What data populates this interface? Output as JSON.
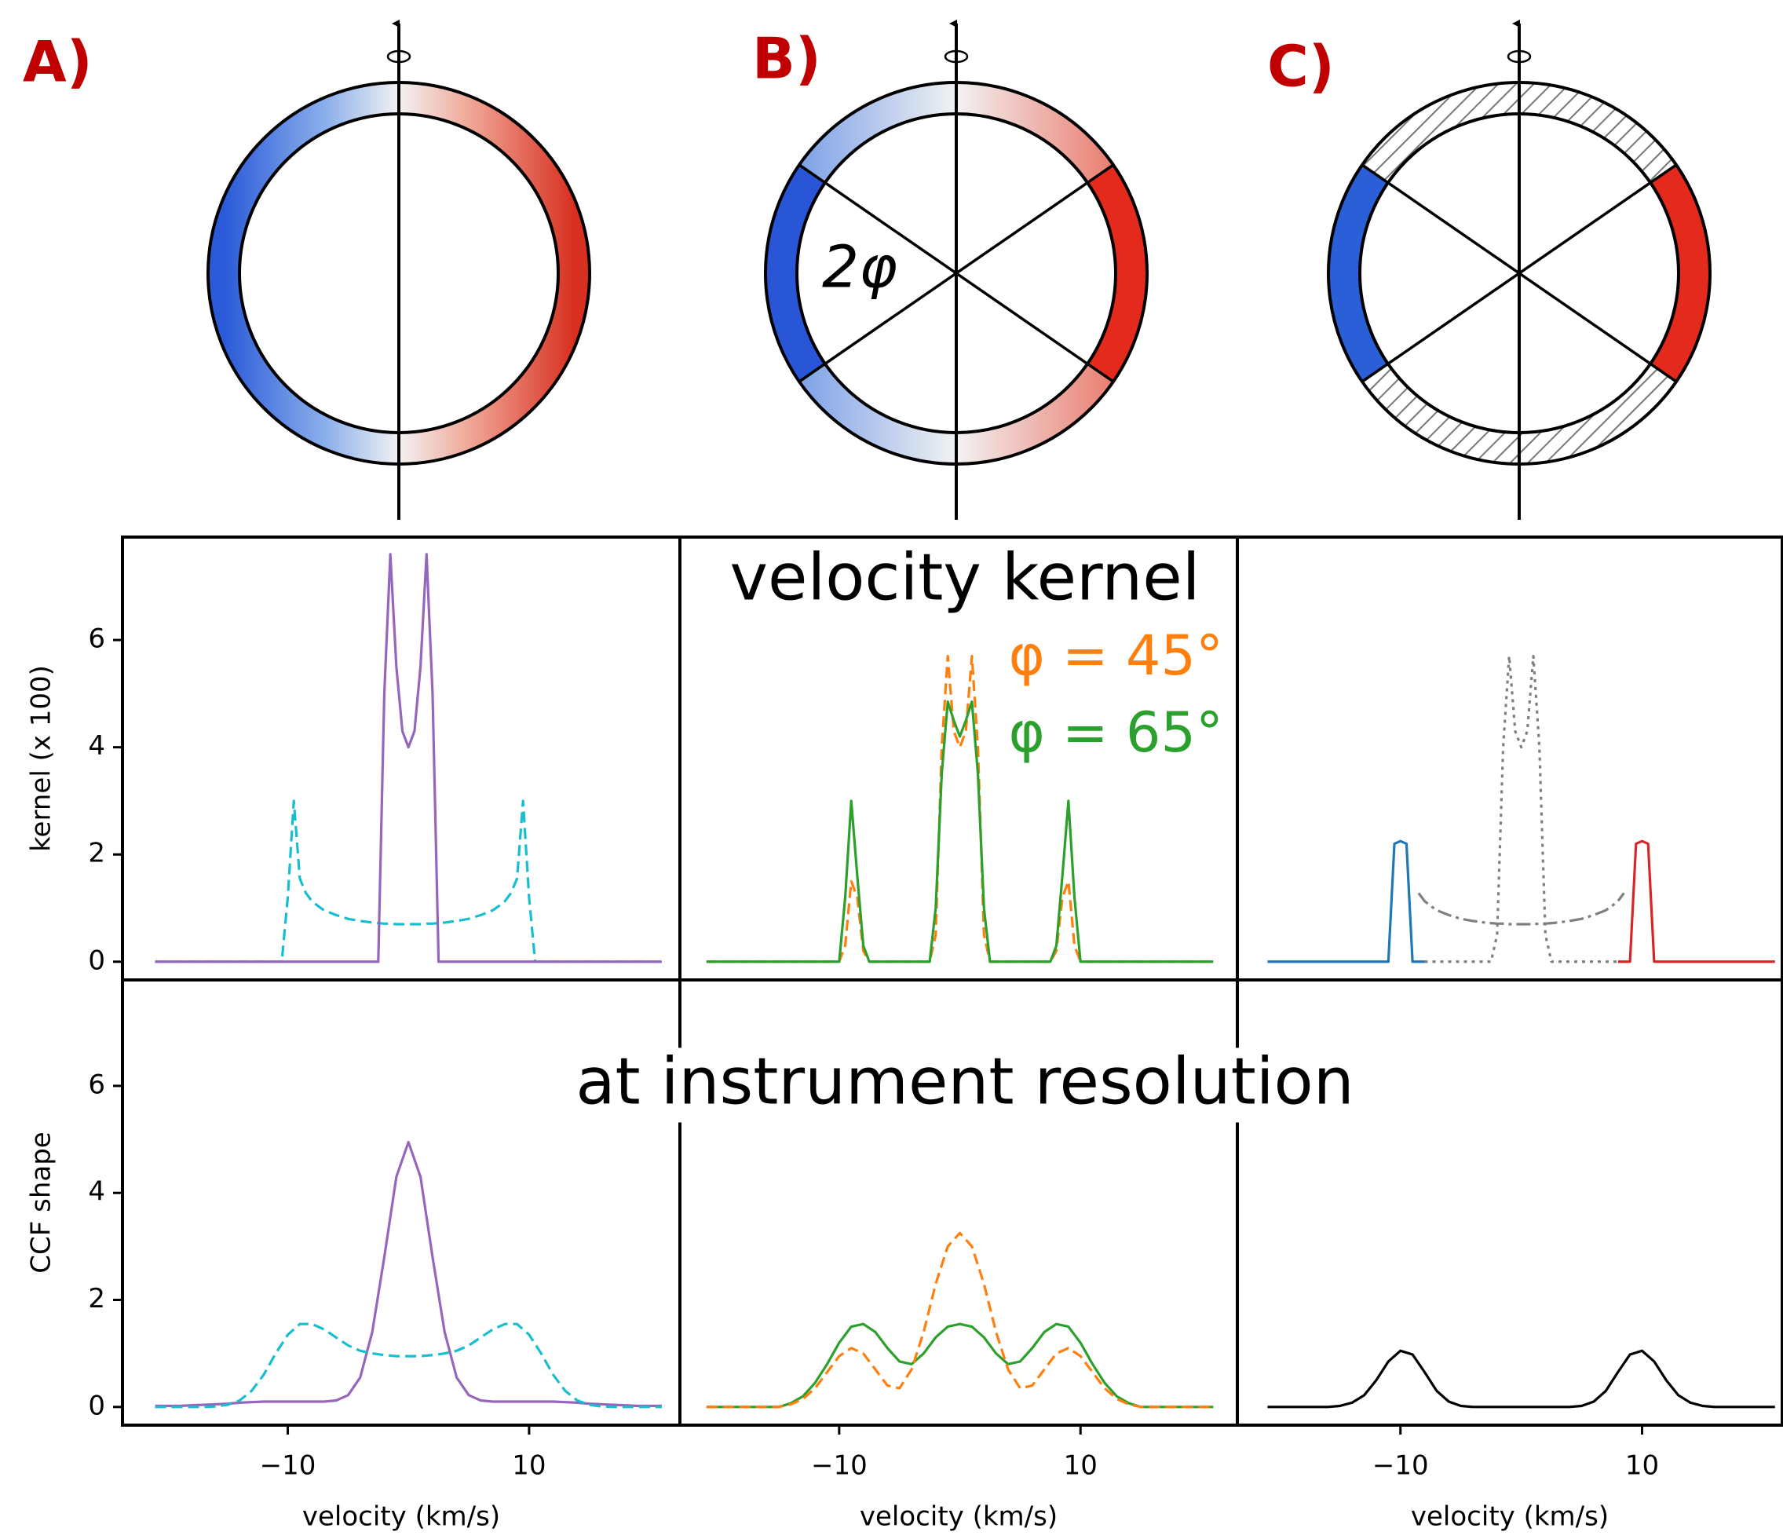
{
  "diagrams": {
    "labels": [
      "A)",
      "B)",
      "C)"
    ],
    "angle_label": "2φ"
  },
  "chart_data": [
    {
      "type": "line",
      "ylabel": "kernel (x 100)",
      "xlim": [
        -23.7,
        22.5
      ],
      "ylim": [
        -0.34,
        7.92
      ],
      "yticks": [
        0,
        2,
        4,
        6
      ],
      "x": [
        -21,
        -12,
        -11,
        -10.5,
        -10,
        -9.5,
        -9,
        -8.5,
        -8,
        -7.5,
        -7,
        -6,
        -5,
        -4,
        -3,
        -2.5,
        -2,
        -1.5,
        -1,
        -0.5,
        0,
        0.5,
        1,
        1.5,
        2,
        2.5,
        3,
        4,
        5,
        6,
        7,
        7.5,
        8,
        8.5,
        9,
        9.5,
        10,
        10.5,
        11,
        12,
        21
      ],
      "series": [
        {
          "color": "#17becf",
          "dash": "dashed",
          "values": [
            0,
            0,
            0,
            0,
            1.2,
            3,
            1.55,
            1.28,
            1.13,
            1.04,
            0.96,
            0.87,
            0.8,
            0.76,
            0.73,
            0.72,
            0.71,
            0.71,
            0.7,
            0.7,
            0.7,
            0.7,
            0.7,
            0.71,
            0.71,
            0.72,
            0.73,
            0.76,
            0.8,
            0.87,
            0.96,
            1.04,
            1.13,
            1.28,
            1.55,
            3,
            1.2,
            0,
            0,
            0,
            0
          ]
        },
        {
          "color": "#9467bd",
          "dash": "solid",
          "values": [
            0,
            0,
            0,
            0,
            0,
            0,
            0,
            0,
            0,
            0,
            0,
            0,
            0,
            0,
            0,
            0,
            5,
            7.6,
            5.5,
            4.3,
            4,
            4.3,
            5.5,
            7.6,
            5,
            0,
            0,
            0,
            0,
            0,
            0,
            0,
            0,
            0,
            0,
            0,
            0,
            0,
            0,
            0,
            0
          ]
        }
      ]
    },
    {
      "type": "line",
      "title": "velocity kernel",
      "legend": "upper right",
      "xlim": [
        -23.2,
        23.0
      ],
      "ylim": [
        -0.34,
        7.92
      ],
      "x": [
        -21,
        -12,
        -11,
        -10.5,
        -10,
        -9.5,
        -9,
        -8.5,
        -8,
        -7.5,
        -7,
        -6,
        -5,
        -4,
        -3,
        -2.5,
        -2,
        -1.5,
        -1,
        -0.5,
        0,
        0.5,
        1,
        1.5,
        2,
        2.5,
        3,
        4,
        5,
        6,
        7,
        7.5,
        8,
        8.5,
        9,
        9.5,
        10,
        10.5,
        11,
        12,
        21
      ],
      "series": [
        {
          "name": "φ = 45°",
          "color": "#ff7f0e",
          "dash": "dashed",
          "values": [
            0,
            0,
            0,
            0,
            0,
            0.3,
            1.5,
            1.2,
            0.2,
            0,
            0,
            0,
            0,
            0,
            0,
            0,
            0.5,
            4,
            5.7,
            4.3,
            4,
            4.3,
            5.7,
            4,
            0.5,
            0,
            0,
            0,
            0,
            0,
            0,
            0,
            0.2,
            1.2,
            1.5,
            0.3,
            0,
            0,
            0,
            0,
            0
          ]
        },
        {
          "name": "φ = 65°",
          "color": "#2ca02c",
          "dash": "solid",
          "values": [
            0,
            0,
            0,
            0,
            0,
            1.2,
            3,
            1.6,
            0.3,
            0,
            0,
            0,
            0,
            0,
            0,
            0,
            1,
            3.5,
            4.85,
            4.5,
            4.2,
            4.5,
            4.85,
            3.5,
            1,
            0,
            0,
            0,
            0,
            0,
            0,
            0,
            0.3,
            1.6,
            3,
            1.2,
            0,
            0,
            0,
            0,
            0
          ]
        }
      ]
    },
    {
      "type": "line",
      "xlim": [
        -23.5,
        21.6
      ],
      "ylim": [
        -0.34,
        7.92
      ],
      "x": [
        -21,
        -12,
        -11,
        -10.5,
        -10,
        -9.5,
        -9,
        -8.5,
        -8,
        -7.5,
        -7,
        -6,
        -5,
        -4,
        -3,
        -2.5,
        -2,
        -1.5,
        -1,
        -0.5,
        0,
        0.5,
        1,
        1.5,
        2,
        2.5,
        3,
        4,
        5,
        6,
        7,
        7.5,
        8,
        8.5,
        9,
        9.5,
        10,
        10.5,
        11,
        12,
        21
      ],
      "series": [
        {
          "color": "#1f77b4",
          "dash": "solid",
          "values": [
            0,
            0,
            0,
            2.2,
            2.25,
            2.2,
            0,
            0,
            0,
            null,
            null,
            null,
            null,
            null,
            null,
            null,
            null,
            null,
            null,
            null,
            null,
            null,
            null,
            null,
            null,
            null,
            null,
            null,
            null,
            null,
            null,
            null,
            null,
            null,
            null,
            null,
            null,
            null,
            null,
            null,
            null
          ]
        },
        {
          "color": "#7f7f7f",
          "dash": "dotted",
          "values": [
            null,
            null,
            null,
            null,
            null,
            null,
            null,
            null,
            0,
            0,
            0,
            0,
            0,
            0,
            0,
            0,
            0.5,
            4,
            5.7,
            4.3,
            4,
            4.3,
            5.7,
            4,
            0.5,
            0,
            0,
            0,
            0,
            0,
            0,
            0,
            0,
            null,
            null,
            null,
            null,
            null,
            null,
            null,
            null
          ]
        },
        {
          "color": "#7f7f7f",
          "dash": "dashdot",
          "values": [
            null,
            null,
            null,
            null,
            null,
            null,
            null,
            1.28,
            1.13,
            1.04,
            0.96,
            0.87,
            0.8,
            0.76,
            0.73,
            0.72,
            0.71,
            0.71,
            0.7,
            0.7,
            0.7,
            0.7,
            0.7,
            0.71,
            0.71,
            0.72,
            0.73,
            0.76,
            0.8,
            0.87,
            0.96,
            1.04,
            1.13,
            1.28,
            null,
            null,
            null,
            null,
            null,
            null,
            null
          ]
        },
        {
          "color": "#d62728",
          "dash": "solid",
          "values": [
            null,
            null,
            null,
            null,
            null,
            null,
            null,
            null,
            null,
            null,
            null,
            null,
            null,
            null,
            null,
            null,
            null,
            null,
            null,
            null,
            null,
            null,
            null,
            null,
            null,
            null,
            null,
            null,
            null,
            null,
            null,
            null,
            0,
            0,
            0,
            2.2,
            2.25,
            2.2,
            0,
            0,
            0
          ]
        }
      ]
    },
    {
      "type": "line",
      "ylabel": "CCF shape",
      "xlabel": "velocity (km/s)",
      "xlim": [
        -23.7,
        22.5
      ],
      "ylim": [
        -0.34,
        7.98
      ],
      "yticks": [
        0,
        2,
        4,
        6
      ],
      "xticks": [
        {
          "value": -10,
          "label": "−10"
        },
        10
      ],
      "x": [
        -21,
        -20,
        -19,
        -18,
        -17,
        -16,
        -15,
        -14,
        -13,
        -12,
        -11,
        -10,
        -9,
        -8,
        -7,
        -6,
        -5,
        -4,
        -3,
        -2,
        -1,
        0,
        1,
        2,
        3,
        4,
        5,
        6,
        7,
        8,
        9,
        10,
        11,
        12,
        13,
        14,
        15,
        16,
        17,
        18,
        19,
        20,
        21
      ],
      "series": [
        {
          "color": "#9467bd",
          "dash": "solid",
          "values": [
            0.02,
            0.02,
            0.02,
            0.03,
            0.04,
            0.05,
            0.06,
            0.08,
            0.09,
            0.1,
            0.1,
            0.1,
            0.1,
            0.1,
            0.1,
            0.12,
            0.22,
            0.55,
            1.4,
            2.8,
            4.3,
            4.95,
            4.3,
            2.8,
            1.4,
            0.55,
            0.22,
            0.12,
            0.1,
            0.1,
            0.1,
            0.1,
            0.1,
            0.1,
            0.09,
            0.08,
            0.06,
            0.05,
            0.04,
            0.03,
            0.02,
            0.02,
            0.02
          ]
        },
        {
          "color": "#17becf",
          "dash": "dashed",
          "values": [
            0,
            0,
            0,
            0,
            0,
            0.01,
            0.04,
            0.12,
            0.3,
            0.6,
            1,
            1.35,
            1.55,
            1.55,
            1.45,
            1.3,
            1.15,
            1.05,
            1,
            0.97,
            0.95,
            0.95,
            0.95,
            0.97,
            1,
            1.05,
            1.15,
            1.3,
            1.45,
            1.55,
            1.55,
            1.35,
            1,
            0.6,
            0.3,
            0.12,
            0.04,
            0.01,
            0,
            0,
            0,
            0,
            0
          ]
        }
      ]
    },
    {
      "type": "line",
      "title": "at instrument resolution",
      "xlabel": "velocity (km/s)",
      "xlim": [
        -23.2,
        23.0
      ],
      "ylim": [
        -0.34,
        7.98
      ],
      "xticks": [
        {
          "value": -10,
          "label": "−10"
        },
        10
      ],
      "x": [
        -21,
        -20,
        -19,
        -18,
        -17,
        -16,
        -15,
        -14,
        -13,
        -12,
        -11,
        -10,
        -9,
        -8,
        -7,
        -6,
        -5,
        -4,
        -3,
        -2,
        -1,
        0,
        1,
        2,
        3,
        4,
        5,
        6,
        7,
        8,
        9,
        10,
        11,
        12,
        13,
        14,
        15,
        16,
        17,
        18,
        19,
        20,
        21
      ],
      "series": [
        {
          "color": "#2ca02c",
          "dash": "solid",
          "values": [
            0,
            0,
            0,
            0,
            0,
            0,
            0,
            0.07,
            0.2,
            0.45,
            0.8,
            1.2,
            1.5,
            1.55,
            1.4,
            1.1,
            0.85,
            0.8,
            1,
            1.3,
            1.5,
            1.55,
            1.5,
            1.3,
            1,
            0.8,
            0.85,
            1.1,
            1.4,
            1.55,
            1.5,
            1.2,
            0.8,
            0.45,
            0.2,
            0.07,
            0,
            0,
            0,
            0,
            0,
            0,
            0
          ]
        },
        {
          "color": "#ff7f0e",
          "dash": "dashed",
          "values": [
            0,
            0,
            0,
            0,
            0,
            0,
            0,
            0.05,
            0.15,
            0.35,
            0.65,
            0.95,
            1.1,
            1,
            0.7,
            0.4,
            0.35,
            0.7,
            1.4,
            2.3,
            3,
            3.25,
            3,
            2.3,
            1.4,
            0.7,
            0.35,
            0.4,
            0.7,
            1,
            1.1,
            0.95,
            0.65,
            0.35,
            0.15,
            0.05,
            0,
            0,
            0,
            0,
            0,
            0,
            0
          ]
        }
      ]
    },
    {
      "type": "line",
      "xlabel": "velocity (km/s)",
      "xlim": [
        -23.5,
        21.6
      ],
      "ylim": [
        -0.34,
        7.98
      ],
      "xticks": [
        {
          "value": -10,
          "label": "−10"
        },
        10
      ],
      "x": [
        -21,
        -20,
        -19,
        -18,
        -17,
        -16,
        -15,
        -14,
        -13,
        -12,
        -11,
        -10,
        -9,
        -8,
        -7,
        -6,
        -5,
        -4,
        -3,
        -2,
        -1,
        0,
        1,
        2,
        3,
        4,
        5,
        6,
        7,
        8,
        9,
        10,
        11,
        12,
        13,
        14,
        15,
        16,
        17,
        18,
        19,
        20,
        21
      ],
      "series": [
        {
          "color": "#000000",
          "dash": "solid",
          "values": [
            0,
            0,
            0,
            0,
            0,
            0,
            0.02,
            0.08,
            0.22,
            0.5,
            0.85,
            1.05,
            0.98,
            0.65,
            0.3,
            0.1,
            0.02,
            0,
            0,
            0,
            0,
            0,
            0,
            0,
            0,
            0,
            0.02,
            0.1,
            0.3,
            0.65,
            0.98,
            1.05,
            0.85,
            0.5,
            0.22,
            0.08,
            0.02,
            0,
            0,
            0,
            0,
            0,
            0
          ]
        }
      ]
    }
  ]
}
